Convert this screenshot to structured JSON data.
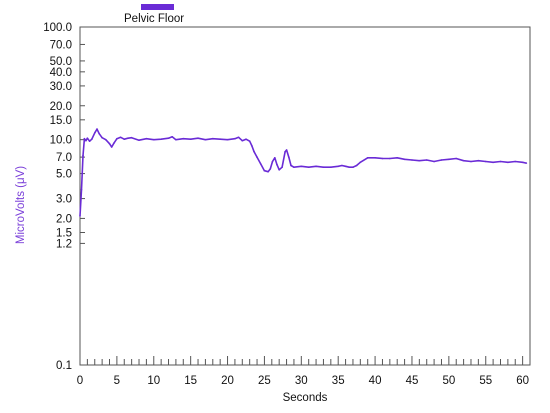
{
  "chart_data": {
    "type": "line",
    "title": "",
    "xlabel": "Seconds",
    "ylabel": "MicroVolts (μV)",
    "xlim": [
      0,
      61
    ],
    "ylim": [
      0.1,
      100.0
    ],
    "y_scale": "log",
    "x_ticks": [
      0,
      5,
      10,
      15,
      20,
      25,
      30,
      35,
      40,
      45,
      50,
      55,
      60
    ],
    "y_ticks": [
      {
        "value": 100.0,
        "label": "100.0"
      },
      {
        "value": 70.0,
        "label": "70.0"
      },
      {
        "value": 50.0,
        "label": "50.0"
      },
      {
        "value": 40.0,
        "label": "40.0"
      },
      {
        "value": 30.0,
        "label": "30.0"
      },
      {
        "value": 20.0,
        "label": "20.0"
      },
      {
        "value": 15.0,
        "label": "15.0"
      },
      {
        "value": 10.0,
        "label": "10.0"
      },
      {
        "value": 7.0,
        "label": "7.0"
      },
      {
        "value": 5.0,
        "label": "5.0"
      },
      {
        "value": 3.0,
        "label": "3.0"
      },
      {
        "value": 2.0,
        "label": "2.0"
      },
      {
        "value": 1.5,
        "label": "1.5"
      },
      {
        "value": 1.2,
        "label": "1.2"
      },
      {
        "value": 0.1,
        "label": "0.1"
      }
    ],
    "grid": false,
    "legend_position": "top-left",
    "series": [
      {
        "name": "Pelvic Floor",
        "color": "#6a2bd6",
        "x": [
          0.0,
          0.2,
          0.4,
          0.6,
          0.8,
          1.0,
          1.3,
          1.6,
          2.0,
          2.3,
          2.6,
          3.0,
          3.5,
          4.0,
          4.3,
          4.6,
          5.0,
          5.5,
          6.0,
          6.5,
          7.0,
          8.0,
          9.0,
          10.0,
          11.0,
          12.0,
          12.5,
          13.0,
          14.0,
          15.0,
          16.0,
          17.0,
          18.0,
          19.0,
          20.0,
          21.0,
          21.5,
          22.0,
          22.5,
          23.0,
          23.3,
          23.6,
          24.0,
          24.5,
          25.0,
          25.5,
          25.8,
          26.1,
          26.4,
          26.7,
          27.0,
          27.4,
          27.8,
          28.0,
          28.3,
          28.6,
          29.0,
          30.0,
          31.0,
          32.0,
          33.0,
          34.0,
          35.0,
          35.5,
          36.0,
          36.5,
          37.0,
          37.5,
          38.0,
          39.0,
          40.0,
          41.0,
          42.0,
          43.0,
          44.0,
          45.0,
          46.0,
          47.0,
          48.0,
          49.0,
          50.0,
          51.0,
          52.0,
          53.0,
          54.0,
          55.0,
          56.0,
          57.0,
          58.0,
          59.0,
          60.0,
          60.5
        ],
        "y": [
          2.1,
          3.6,
          7.2,
          10.2,
          9.8,
          10.3,
          9.7,
          10.1,
          11.5,
          12.4,
          11.3,
          10.4,
          10.0,
          9.2,
          8.6,
          9.3,
          10.2,
          10.5,
          10.1,
          10.3,
          10.4,
          9.9,
          10.2,
          10.0,
          10.1,
          10.3,
          10.6,
          10.0,
          10.2,
          10.1,
          10.3,
          10.0,
          10.2,
          10.1,
          10.0,
          10.2,
          10.5,
          9.8,
          10.1,
          9.7,
          8.8,
          7.8,
          7.0,
          6.1,
          5.3,
          5.2,
          5.5,
          6.4,
          6.9,
          6.0,
          5.4,
          5.7,
          7.8,
          8.1,
          7.0,
          5.9,
          5.7,
          5.8,
          5.7,
          5.8,
          5.7,
          5.7,
          5.8,
          5.9,
          5.8,
          5.7,
          5.7,
          5.9,
          6.3,
          6.9,
          6.9,
          6.8,
          6.8,
          6.9,
          6.7,
          6.6,
          6.5,
          6.6,
          6.4,
          6.6,
          6.7,
          6.8,
          6.5,
          6.4,
          6.5,
          6.4,
          6.3,
          6.4,
          6.3,
          6.4,
          6.3,
          6.2
        ]
      }
    ]
  }
}
